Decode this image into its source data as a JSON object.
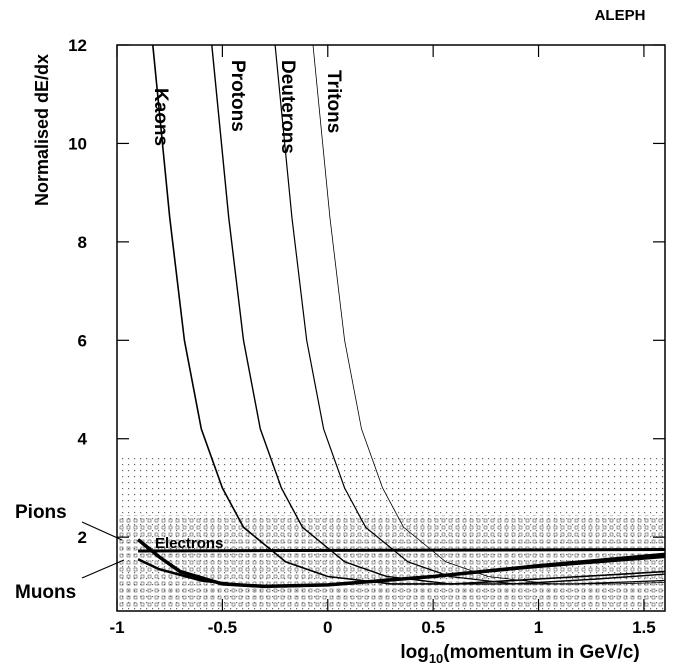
{
  "chart_data": {
    "type": "line",
    "title": "ALEPH",
    "y_label": "Normalised dE/dx",
    "x_label": {
      "pre": "log",
      "sub": "10",
      "post": "(momentum in GeV/c)"
    },
    "xlim": [
      -1,
      1.6
    ],
    "ylim": [
      0.5,
      12
    ],
    "xticks": [
      -1,
      -0.5,
      0,
      0.5,
      1,
      1.5
    ],
    "yticks": [
      2,
      4,
      6,
      8,
      10,
      12
    ],
    "series": [
      {
        "name": "Kaons",
        "color": "#000000",
        "line_width": 1.6,
        "x": [
          -0.83,
          -0.75,
          -0.68,
          -0.6,
          -0.5,
          -0.4,
          -0.2,
          0,
          0.3,
          0.6,
          1,
          1.6
        ],
        "values": [
          12,
          8.5,
          6,
          4.2,
          3,
          2.2,
          1.5,
          1.2,
          1.05,
          1.05,
          1.15,
          1.3
        ]
      },
      {
        "name": "Protons",
        "color": "#000000",
        "line_width": 1.4,
        "x": [
          -0.55,
          -0.47,
          -0.4,
          -0.32,
          -0.22,
          -0.12,
          0.08,
          0.28,
          0.58,
          0.88,
          1.28,
          1.6
        ],
        "values": [
          12,
          8.5,
          6,
          4.2,
          3,
          2.2,
          1.5,
          1.2,
          1.05,
          1.05,
          1.15,
          1.25
        ]
      },
      {
        "name": "Deuterons",
        "color": "#000000",
        "line_width": 1.2,
        "x": [
          -0.25,
          -0.17,
          -0.1,
          -0.02,
          0.08,
          0.18,
          0.38,
          0.58,
          0.88,
          1.18,
          1.6
        ],
        "values": [
          12,
          8.5,
          6,
          4.2,
          3,
          2.2,
          1.5,
          1.2,
          1.05,
          1.05,
          1.12
        ]
      },
      {
        "name": "Tritons",
        "color": "#000000",
        "line_width": 0.8,
        "x": [
          -0.07,
          0.01,
          0.08,
          0.16,
          0.26,
          0.36,
          0.56,
          0.76,
          1.06,
          1.36,
          1.6
        ],
        "values": [
          12,
          8.5,
          6,
          4.2,
          3,
          2.2,
          1.5,
          1.2,
          1.05,
          1.05,
          1.08
        ]
      },
      {
        "name": "Pions",
        "color": "#000000",
        "line_width": 3.5,
        "x": [
          -0.9,
          -0.8,
          -0.7,
          -0.5,
          -0.3,
          0,
          0.5,
          1,
          1.6
        ],
        "values": [
          1.95,
          1.6,
          1.3,
          1.05,
          1.0,
          1.03,
          1.2,
          1.42,
          1.65
        ]
      },
      {
        "name": "Muons",
        "color": "#000000",
        "line_width": 2.5,
        "x": [
          -0.9,
          -0.8,
          -0.6,
          -0.4,
          -0.2,
          0,
          0.5,
          1,
          1.6
        ],
        "values": [
          1.55,
          1.35,
          1.12,
          1.02,
          1.0,
          1.03,
          1.2,
          1.4,
          1.6
        ]
      },
      {
        "name": "Electrons",
        "color": "#000000",
        "line_width": 3,
        "x": [
          -0.9,
          1.6
        ],
        "values": [
          1.72,
          1.75
        ]
      }
    ]
  }
}
